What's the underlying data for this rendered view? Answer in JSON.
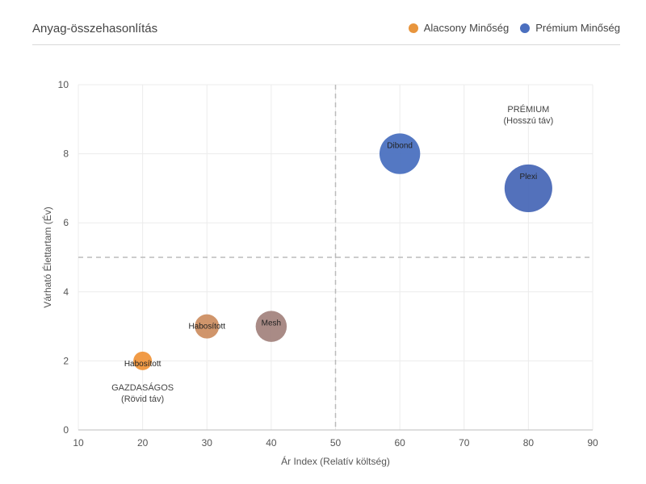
{
  "header": {
    "title": "Anyag-összehasonlítás"
  },
  "legend": [
    {
      "label": "Alacsony Minőség",
      "color": "#E8953D"
    },
    {
      "label": "Prémium Minőség",
      "color": "#4B6FBF"
    }
  ],
  "chart_data": {
    "type": "scatter",
    "subtype": "bubble",
    "title": "Anyag-összehasonlítás",
    "xlabel": "Ár Index (Relatív költség)",
    "ylabel": "Várható Élettartam (Év)",
    "xlim": [
      10,
      90
    ],
    "ylim": [
      0,
      10
    ],
    "xticks": [
      10,
      20,
      30,
      40,
      50,
      60,
      70,
      80,
      90
    ],
    "yticks": [
      0,
      2,
      4,
      6,
      8,
      10
    ],
    "grid": true,
    "legend_position": "top-right",
    "reference_lines": {
      "x": 50,
      "y": 5
    },
    "points": [
      {
        "label": "Habosított",
        "x": 20,
        "y": 2,
        "size": 1,
        "color": "#F0963C"
      },
      {
        "label": "Habosított",
        "x": 30,
        "y": 3,
        "size": 1.7,
        "color": "#CD8F63"
      },
      {
        "label": "Mesh",
        "x": 40,
        "y": 3,
        "size": 2.8,
        "color": "#A4857F"
      },
      {
        "label": "Dibond",
        "x": 60,
        "y": 8,
        "size": 4.8,
        "color": "#4B71C0"
      },
      {
        "label": "Plexi",
        "x": 80,
        "y": 7,
        "size": 6.6,
        "color": "#4A69B7"
      }
    ],
    "annotations": [
      {
        "line1": "PRÉMIUM",
        "line2": "(Hosszú táv)",
        "x": 80,
        "y": 9.2
      },
      {
        "line1": "GAZDASÁGOS",
        "line2": "(Rövid táv)",
        "x": 20,
        "y": 1.15
      }
    ]
  }
}
